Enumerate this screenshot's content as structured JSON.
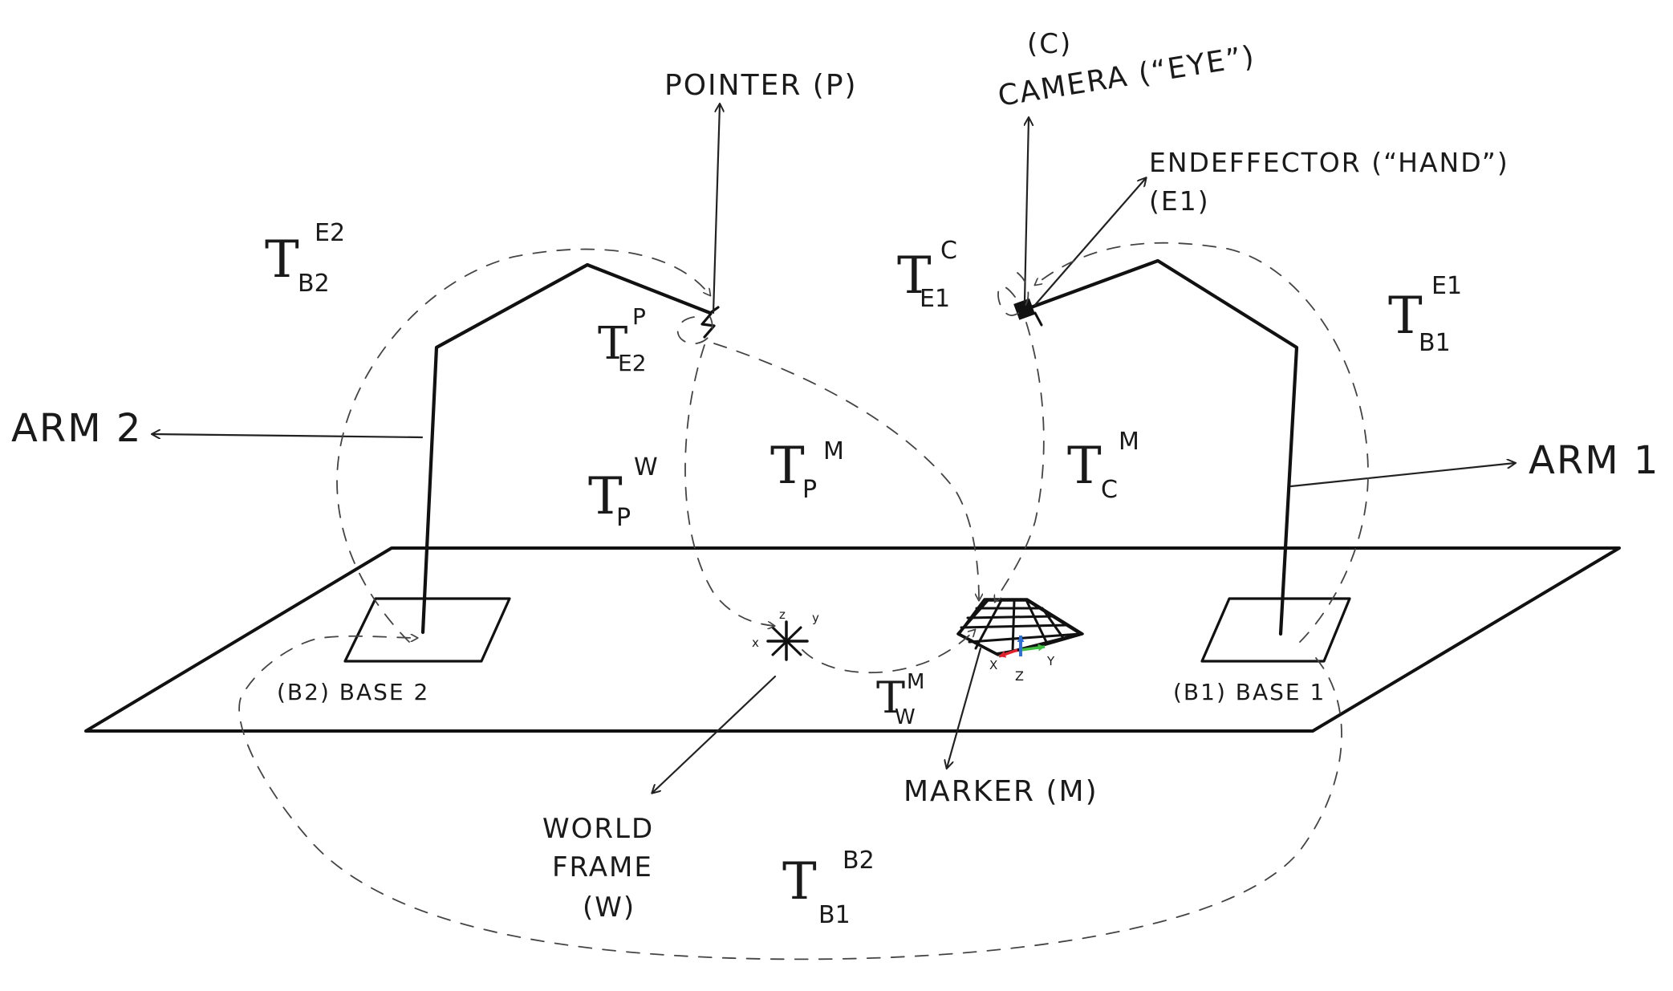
{
  "labels": {
    "pointer": "POINTER (P)",
    "camera_c": "(C)",
    "camera": "CAMERA (“EYE”)",
    "endeffector": "ENDEFFECTOR (“HAND”)",
    "endeffector_id": "(E1)",
    "arm2": "ARM 2",
    "arm1": "ARM 1",
    "base2": "(B2)  BASE 2",
    "base1": "(B1) BASE 1",
    "marker": "MARKER (M)",
    "world_line1": "WORLD",
    "world_line2": "FRAME",
    "world_line3": "(W)"
  },
  "transforms": {
    "T_B2_E2": {
      "base": "T",
      "sub": "B2",
      "sup": "E2"
    },
    "T_E2_P": {
      "base": "T",
      "sub": "E2",
      "sup": "P"
    },
    "T_P_W": {
      "base": "T",
      "sub": "P",
      "sup": "W"
    },
    "T_P_M": {
      "base": "T",
      "sub": "P",
      "sup": "M"
    },
    "T_E1_C": {
      "base": "T",
      "sub": "E1",
      "sup": "C"
    },
    "T_C_M": {
      "base": "T",
      "sub": "C",
      "sup": "M"
    },
    "T_B1_E1": {
      "base": "T",
      "sub": "B1",
      "sup": "E1"
    },
    "T_W_M": {
      "base": "T",
      "sub": "W",
      "sup": "M"
    },
    "T_B1_B2": {
      "base": "T",
      "sub": "B1",
      "sup": "B2"
    }
  },
  "world_axes": {
    "x": "x",
    "y": "y",
    "z": "z"
  },
  "marker_axes": {
    "x": "X",
    "y": "Y",
    "z": "Z"
  },
  "colors": {
    "x_axis": "#e0202a",
    "y_axis": "#3fbf3f",
    "z_axis": "#2f6fd6"
  }
}
